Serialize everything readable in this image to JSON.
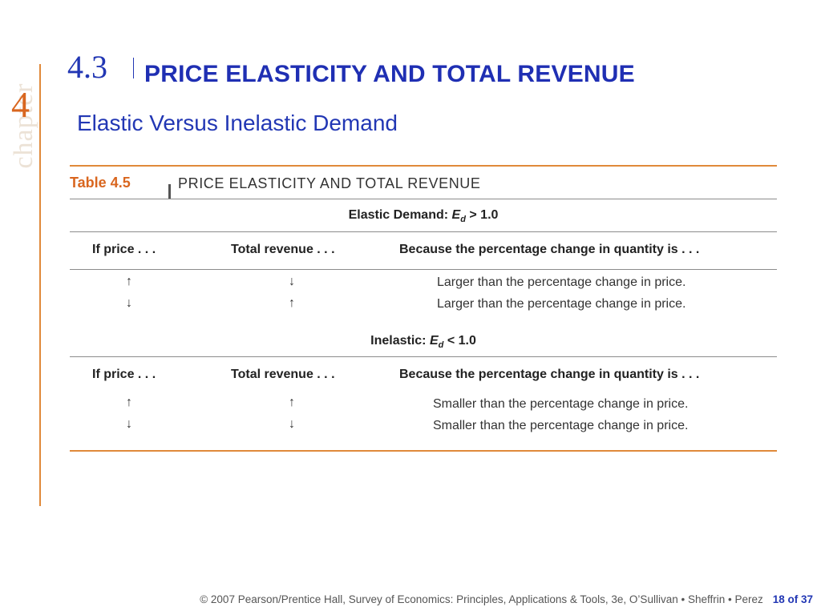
{
  "chapter": {
    "word": "chapter",
    "number": "4"
  },
  "section": {
    "number": "4.3",
    "title": "PRICE ELASTICITY AND TOTAL REVENUE"
  },
  "subtitle": "Elastic Versus Inelastic Demand",
  "table": {
    "label": "Table 4.5",
    "title": "PRICE ELASTICITY AND TOTAL REVENUE",
    "elastic": {
      "prefix": "Elastic Demand:",
      "symbol": "E",
      "sub": "d",
      "condition": "> 1.0",
      "headers": [
        "If price . . .",
        "Total revenue . . .",
        "Because the percentage change in quantity is . . ."
      ],
      "rows": [
        {
          "price": "↑",
          "revenue": "↓",
          "reason": "Larger than the percentage change in price."
        },
        {
          "price": "↓",
          "revenue": "↑",
          "reason": "Larger than the percentage change in price."
        }
      ]
    },
    "inelastic": {
      "prefix": "Inelastic:",
      "symbol": "E",
      "sub": "d",
      "condition": "< 1.0",
      "headers": [
        "If price . . .",
        "Total revenue . . .",
        "Because the percentage change in quantity is . . ."
      ],
      "rows": [
        {
          "price": "↑",
          "revenue": "↑",
          "reason": "Smaller than the percentage change in price."
        },
        {
          "price": "↓",
          "revenue": "↓",
          "reason": "Smaller than the percentage change in price."
        }
      ]
    }
  },
  "footer": {
    "credit": "© 2007 Pearson/Prentice Hall, Survey of Economics: Principles, Applications & Tools, 3e, O’Sullivan • Sheffrin • Perez",
    "page": "18 of 37"
  }
}
